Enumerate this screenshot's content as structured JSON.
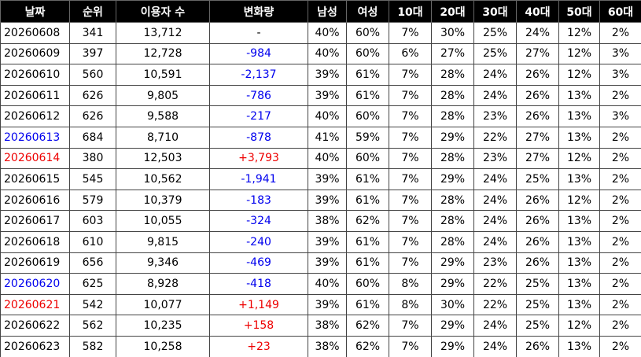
{
  "table": {
    "headers": [
      "날짜",
      "순위",
      "이용자 수",
      "변화량",
      "남성",
      "여성",
      "10대",
      "20대",
      "30대",
      "40대",
      "50대",
      "60대"
    ],
    "rows": [
      [
        "20260608",
        "341",
        "13,712",
        "-",
        "40%",
        "60%",
        "7%",
        "30%",
        "25%",
        "24%",
        "12%",
        "2%"
      ],
      [
        "20260609",
        "397",
        "12,728",
        "-984",
        "40%",
        "60%",
        "6%",
        "27%",
        "25%",
        "27%",
        "12%",
        "3%"
      ],
      [
        "20260610",
        "560",
        "10,591",
        "-2,137",
        "39%",
        "61%",
        "7%",
        "28%",
        "24%",
        "26%",
        "12%",
        "3%"
      ],
      [
        "20260611",
        "626",
        "9,805",
        "-786",
        "39%",
        "61%",
        "7%",
        "28%",
        "24%",
        "26%",
        "13%",
        "2%"
      ],
      [
        "20260612",
        "626",
        "9,588",
        "-217",
        "40%",
        "60%",
        "7%",
        "28%",
        "23%",
        "26%",
        "13%",
        "3%"
      ],
      [
        "20260613",
        "684",
        "8,710",
        "-878",
        "41%",
        "59%",
        "7%",
        "29%",
        "22%",
        "27%",
        "13%",
        "2%"
      ],
      [
        "20260614",
        "380",
        "12,503",
        "+3,793",
        "40%",
        "60%",
        "7%",
        "28%",
        "23%",
        "27%",
        "12%",
        "2%"
      ],
      [
        "20260615",
        "545",
        "10,562",
        "-1,941",
        "39%",
        "61%",
        "7%",
        "29%",
        "24%",
        "25%",
        "13%",
        "2%"
      ],
      [
        "20260616",
        "579",
        "10,379",
        "-183",
        "39%",
        "61%",
        "7%",
        "28%",
        "24%",
        "26%",
        "12%",
        "2%"
      ],
      [
        "20260617",
        "603",
        "10,055",
        "-324",
        "38%",
        "62%",
        "7%",
        "28%",
        "24%",
        "26%",
        "13%",
        "2%"
      ],
      [
        "20260618",
        "610",
        "9,815",
        "-240",
        "39%",
        "61%",
        "7%",
        "28%",
        "24%",
        "26%",
        "13%",
        "2%"
      ],
      [
        "20260619",
        "656",
        "9,346",
        "-469",
        "39%",
        "61%",
        "7%",
        "29%",
        "23%",
        "26%",
        "13%",
        "2%"
      ],
      [
        "20260620",
        "625",
        "8,928",
        "-418",
        "40%",
        "60%",
        "8%",
        "29%",
        "22%",
        "25%",
        "13%",
        "2%"
      ],
      [
        "20260621",
        "542",
        "10,077",
        "+1,149",
        "39%",
        "61%",
        "8%",
        "30%",
        "22%",
        "25%",
        "13%",
        "2%"
      ],
      [
        "20260622",
        "562",
        "10,235",
        "+158",
        "38%",
        "62%",
        "7%",
        "29%",
        "24%",
        "25%",
        "12%",
        "2%"
      ],
      [
        "20260623",
        "582",
        "10,258",
        "+23",
        "38%",
        "62%",
        "7%",
        "29%",
        "24%",
        "26%",
        "13%",
        "2%"
      ]
    ]
  }
}
